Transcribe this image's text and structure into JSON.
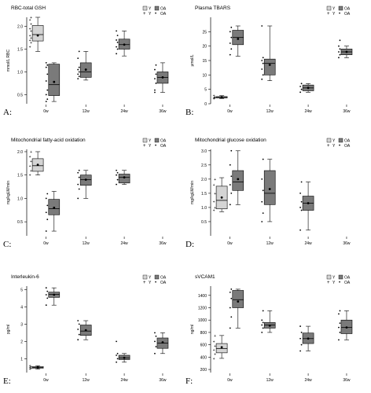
{
  "colors": {
    "young_fill": "#d4d4d4",
    "oa_fill": "#7a7a7a",
    "axis": "#000000",
    "point": "#000000"
  },
  "legend": {
    "row1": [
      "Y",
      "OA"
    ],
    "row2": [
      "Y",
      "OA"
    ]
  },
  "panel_labels": [
    "A:",
    "B:",
    "C:",
    "D:",
    "E:",
    "F:"
  ],
  "chart_data": [
    {
      "type": "box",
      "title": "RBC-total GSH",
      "ylabel": "mmol/L RBC",
      "ylim": [
        0.3,
        2.2
      ],
      "yticks": [
        0.5,
        1.0,
        1.5,
        2.0
      ],
      "ytick_labels": [
        "0.5",
        "1.0",
        "1.5",
        "2.0"
      ],
      "categories": [
        "0w",
        "12w",
        "24w",
        "36w"
      ],
      "boxes": [
        {
          "cat": 0,
          "group": "Y",
          "min": 1.45,
          "q1": 1.68,
          "median": 1.82,
          "q3": 2.02,
          "max": 2.2,
          "mean": 1.8,
          "points": [
            1.55,
            1.65,
            1.7,
            1.75,
            1.8,
            1.9,
            1.95,
            2.05,
            2.15,
            2.2
          ]
        },
        {
          "cat": 0,
          "group": "OA",
          "min": 0.35,
          "q1": 0.48,
          "median": 0.72,
          "q3": 1.17,
          "max": 1.2,
          "mean": 0.78,
          "points": [
            0.35,
            0.4,
            0.5,
            0.6,
            0.8,
            0.95,
            1.1,
            1.15,
            1.2
          ]
        },
        {
          "cat": 1,
          "group": "OA",
          "min": 0.82,
          "q1": 0.88,
          "median": 1.0,
          "q3": 1.2,
          "max": 1.45,
          "mean": 1.05,
          "points": [
            0.85,
            0.9,
            0.95,
            1.0,
            1.05,
            1.1,
            1.3,
            1.45
          ]
        },
        {
          "cat": 2,
          "group": "OA",
          "min": 1.35,
          "q1": 1.5,
          "median": 1.6,
          "q3": 1.72,
          "max": 1.9,
          "mean": 1.6,
          "points": [
            1.4,
            1.5,
            1.55,
            1.65,
            1.7,
            1.8,
            1.9
          ]
        },
        {
          "cat": 3,
          "group": "OA",
          "min": 0.55,
          "q1": 0.75,
          "median": 0.88,
          "q3": 1.0,
          "max": 1.2,
          "mean": 0.88,
          "points": [
            0.55,
            0.75,
            0.85,
            0.95,
            1.05,
            1.15,
            0.6
          ]
        }
      ]
    },
    {
      "type": "box",
      "title": "Plasma TBARS",
      "ylabel": "µmol/L",
      "ylim": [
        0,
        30
      ],
      "yticks": [
        0,
        5,
        10,
        15,
        20,
        25
      ],
      "ytick_labels": [
        "0",
        "5",
        "10",
        "15",
        "20",
        "25"
      ],
      "categories": [
        "0w",
        "12w",
        "24w",
        "36w"
      ],
      "boxes": [
        {
          "cat": 0,
          "group": "Y",
          "min": 1.8,
          "q1": 2.0,
          "median": 2.2,
          "q3": 2.5,
          "max": 2.8,
          "mean": 2.3,
          "points": [
            1.8,
            2.0,
            2.2,
            2.5,
            2.8
          ]
        },
        {
          "cat": 0,
          "group": "OA",
          "min": 16.5,
          "q1": 20.5,
          "median": 23.0,
          "q3": 25.5,
          "max": 27.0,
          "mean": 22.5,
          "points": [
            17,
            19,
            21,
            23,
            25,
            26.5
          ]
        },
        {
          "cat": 1,
          "group": "OA",
          "min": 8.0,
          "q1": 10.0,
          "median": 14.0,
          "q3": 15.5,
          "max": 27.0,
          "mean": 13.5,
          "points": [
            8.5,
            10,
            12,
            14,
            15,
            16,
            27
          ]
        },
        {
          "cat": 2,
          "group": "OA",
          "min": 4.0,
          "q1": 4.5,
          "median": 5.5,
          "q3": 6.5,
          "max": 7.0,
          "mean": 5.5,
          "points": [
            4,
            5,
            6,
            7
          ]
        },
        {
          "cat": 3,
          "group": "OA",
          "min": 16.0,
          "q1": 17.0,
          "median": 18.0,
          "q3": 19.0,
          "max": 20.0,
          "mean": 18.0,
          "points": [
            16,
            17,
            18,
            19,
            20,
            22
          ]
        }
      ]
    },
    {
      "type": "box",
      "title": "Mitochondrial fatty-acid oxidation",
      "ylabel": "mg/kgLM/min",
      "ylim": [
        0.2,
        2.05
      ],
      "yticks": [
        0.5,
        1.0,
        1.5,
        2.0
      ],
      "ytick_labels": [
        "0.5",
        "1.0",
        "1.5",
        "2.0"
      ],
      "categories": [
        "0w",
        "12w",
        "24w",
        "36w"
      ],
      "boxes": [
        {
          "cat": 0,
          "group": "Y",
          "min": 1.5,
          "q1": 1.58,
          "median": 1.7,
          "q3": 1.85,
          "max": 2.0,
          "mean": 1.72,
          "points": [
            1.5,
            1.6,
            1.7,
            1.8,
            1.9,
            2.0
          ]
        },
        {
          "cat": 0,
          "group": "OA",
          "min": 0.3,
          "q1": 0.65,
          "median": 0.78,
          "q3": 0.98,
          "max": 1.15,
          "mean": 0.8,
          "points": [
            0.3,
            0.55,
            0.7,
            0.85,
            1.0,
            1.1
          ]
        },
        {
          "cat": 1,
          "group": "OA",
          "min": 1.0,
          "q1": 1.28,
          "median": 1.4,
          "q3": 1.5,
          "max": 1.6,
          "mean": 1.4,
          "points": [
            1.0,
            1.2,
            1.3,
            1.45,
            1.55,
            1.6
          ]
        },
        {
          "cat": 2,
          "group": "OA",
          "min": 1.3,
          "q1": 1.33,
          "median": 1.45,
          "q3": 1.52,
          "max": 1.6,
          "mean": 1.45,
          "points": [
            1.3,
            1.4,
            1.5,
            1.55,
            1.6
          ]
        }
      ]
    },
    {
      "type": "box",
      "title": "Mitochondrial glucose oxidation",
      "ylabel": "mg/kgLM/min",
      "ylim": [
        0.0,
        3.05
      ],
      "yticks": [
        0.5,
        1.0,
        1.5,
        2.0,
        2.5,
        3.0
      ],
      "ytick_labels": [
        "0.5",
        "1.0",
        "1.5",
        "2.0",
        "2.5",
        "3.0"
      ],
      "categories": [
        "0w",
        "12w",
        "24w",
        "36w"
      ],
      "boxes": [
        {
          "cat": 0,
          "group": "Y",
          "min": 0.85,
          "q1": 0.95,
          "median": 1.25,
          "q3": 1.75,
          "max": 2.05,
          "mean": 1.35,
          "points": [
            0.9,
            1.0,
            1.2,
            1.5,
            1.8,
            2.0
          ]
        },
        {
          "cat": 0,
          "group": "OA",
          "min": 1.1,
          "q1": 1.6,
          "median": 1.9,
          "q3": 2.3,
          "max": 3.0,
          "mean": 2.0,
          "points": [
            1.1,
            1.5,
            1.8,
            2.1,
            2.5,
            3.0
          ]
        },
        {
          "cat": 1,
          "group": "OA",
          "min": 0.5,
          "q1": 1.1,
          "median": 1.5,
          "q3": 2.3,
          "max": 2.7,
          "mean": 1.65,
          "points": [
            0.5,
            0.8,
            1.2,
            1.6,
            2.0,
            2.7
          ]
        },
        {
          "cat": 2,
          "group": "OA",
          "min": 0.2,
          "q1": 0.9,
          "median": 1.15,
          "q3": 1.4,
          "max": 1.9,
          "mean": 1.15,
          "points": [
            0.2,
            0.9,
            1.0,
            1.2,
            1.5,
            1.9
          ]
        }
      ]
    },
    {
      "type": "box",
      "title": "Interleukin-6",
      "ylabel": "pg/ml",
      "ylim": [
        0.2,
        5.2
      ],
      "yticks": [
        1,
        2,
        3,
        4,
        5
      ],
      "ytick_labels": [
        "1",
        "2",
        "3",
        "4",
        "5"
      ],
      "categories": [
        "0w",
        "12w",
        "24w",
        "36w"
      ],
      "boxes": [
        {
          "cat": 0,
          "group": "Y",
          "min": 0.4,
          "q1": 0.45,
          "median": 0.5,
          "q3": 0.55,
          "max": 0.6,
          "mean": 0.5,
          "points": [
            0.4,
            0.45,
            0.5,
            0.55,
            0.6
          ]
        },
        {
          "cat": 0,
          "group": "OA",
          "min": 4.1,
          "q1": 4.55,
          "median": 4.72,
          "q3": 4.85,
          "max": 5.1,
          "mean": 4.7,
          "points": [
            4.1,
            4.5,
            4.7,
            4.9,
            5.1
          ]
        },
        {
          "cat": 1,
          "group": "OA",
          "min": 2.1,
          "q1": 2.35,
          "median": 2.6,
          "q3": 2.95,
          "max": 3.2,
          "mean": 2.65,
          "points": [
            2.1,
            2.4,
            2.7,
            3.0,
            3.2
          ]
        },
        {
          "cat": 2,
          "group": "OA",
          "min": 0.8,
          "q1": 0.95,
          "median": 1.05,
          "q3": 1.2,
          "max": 1.3,
          "mean": 1.05,
          "points": [
            0.8,
            1.0,
            1.2,
            1.3,
            2.0
          ]
        },
        {
          "cat": 3,
          "group": "OA",
          "min": 1.3,
          "q1": 1.6,
          "median": 1.9,
          "q3": 2.2,
          "max": 2.5,
          "mean": 1.95,
          "points": [
            1.3,
            1.7,
            2.0,
            2.3,
            2.5
          ]
        }
      ]
    },
    {
      "type": "box",
      "title": "sVCAM1",
      "ylabel": "ng/ml",
      "ylim": [
        150,
        1550
      ],
      "yticks": [
        200,
        400,
        600,
        800,
        1000,
        1200,
        1400
      ],
      "ytick_labels": [
        "200",
        "400",
        "600",
        "800",
        "1000",
        "1200",
        "1400"
      ],
      "categories": [
        "0w",
        "12w",
        "24w",
        "36w"
      ],
      "boxes": [
        {
          "cat": 0,
          "group": "Y",
          "min": 380,
          "q1": 470,
          "median": 540,
          "q3": 620,
          "max": 750,
          "mean": 560,
          "points": [
            380,
            450,
            520,
            580,
            650,
            750
          ]
        },
        {
          "cat": 0,
          "group": "OA",
          "min": 870,
          "q1": 1200,
          "median": 1330,
          "q3": 1480,
          "max": 1500,
          "mean": 1300,
          "points": [
            870,
            1050,
            1200,
            1350,
            1450,
            1500
          ]
        },
        {
          "cat": 1,
          "group": "OA",
          "min": 800,
          "q1": 870,
          "median": 920,
          "q3": 960,
          "max": 1150,
          "mean": 910,
          "points": [
            800,
            870,
            920,
            960,
            1000,
            1150
          ]
        },
        {
          "cat": 2,
          "group": "OA",
          "min": 500,
          "q1": 620,
          "median": 700,
          "q3": 790,
          "max": 900,
          "mean": 700,
          "points": [
            500,
            600,
            700,
            800,
            900
          ]
        },
        {
          "cat": 3,
          "group": "OA",
          "min": 680,
          "q1": 780,
          "median": 880,
          "q3": 1000,
          "max": 1150,
          "mean": 880,
          "points": [
            680,
            800,
            880,
            950,
            1100,
            1150
          ]
        }
      ]
    }
  ]
}
